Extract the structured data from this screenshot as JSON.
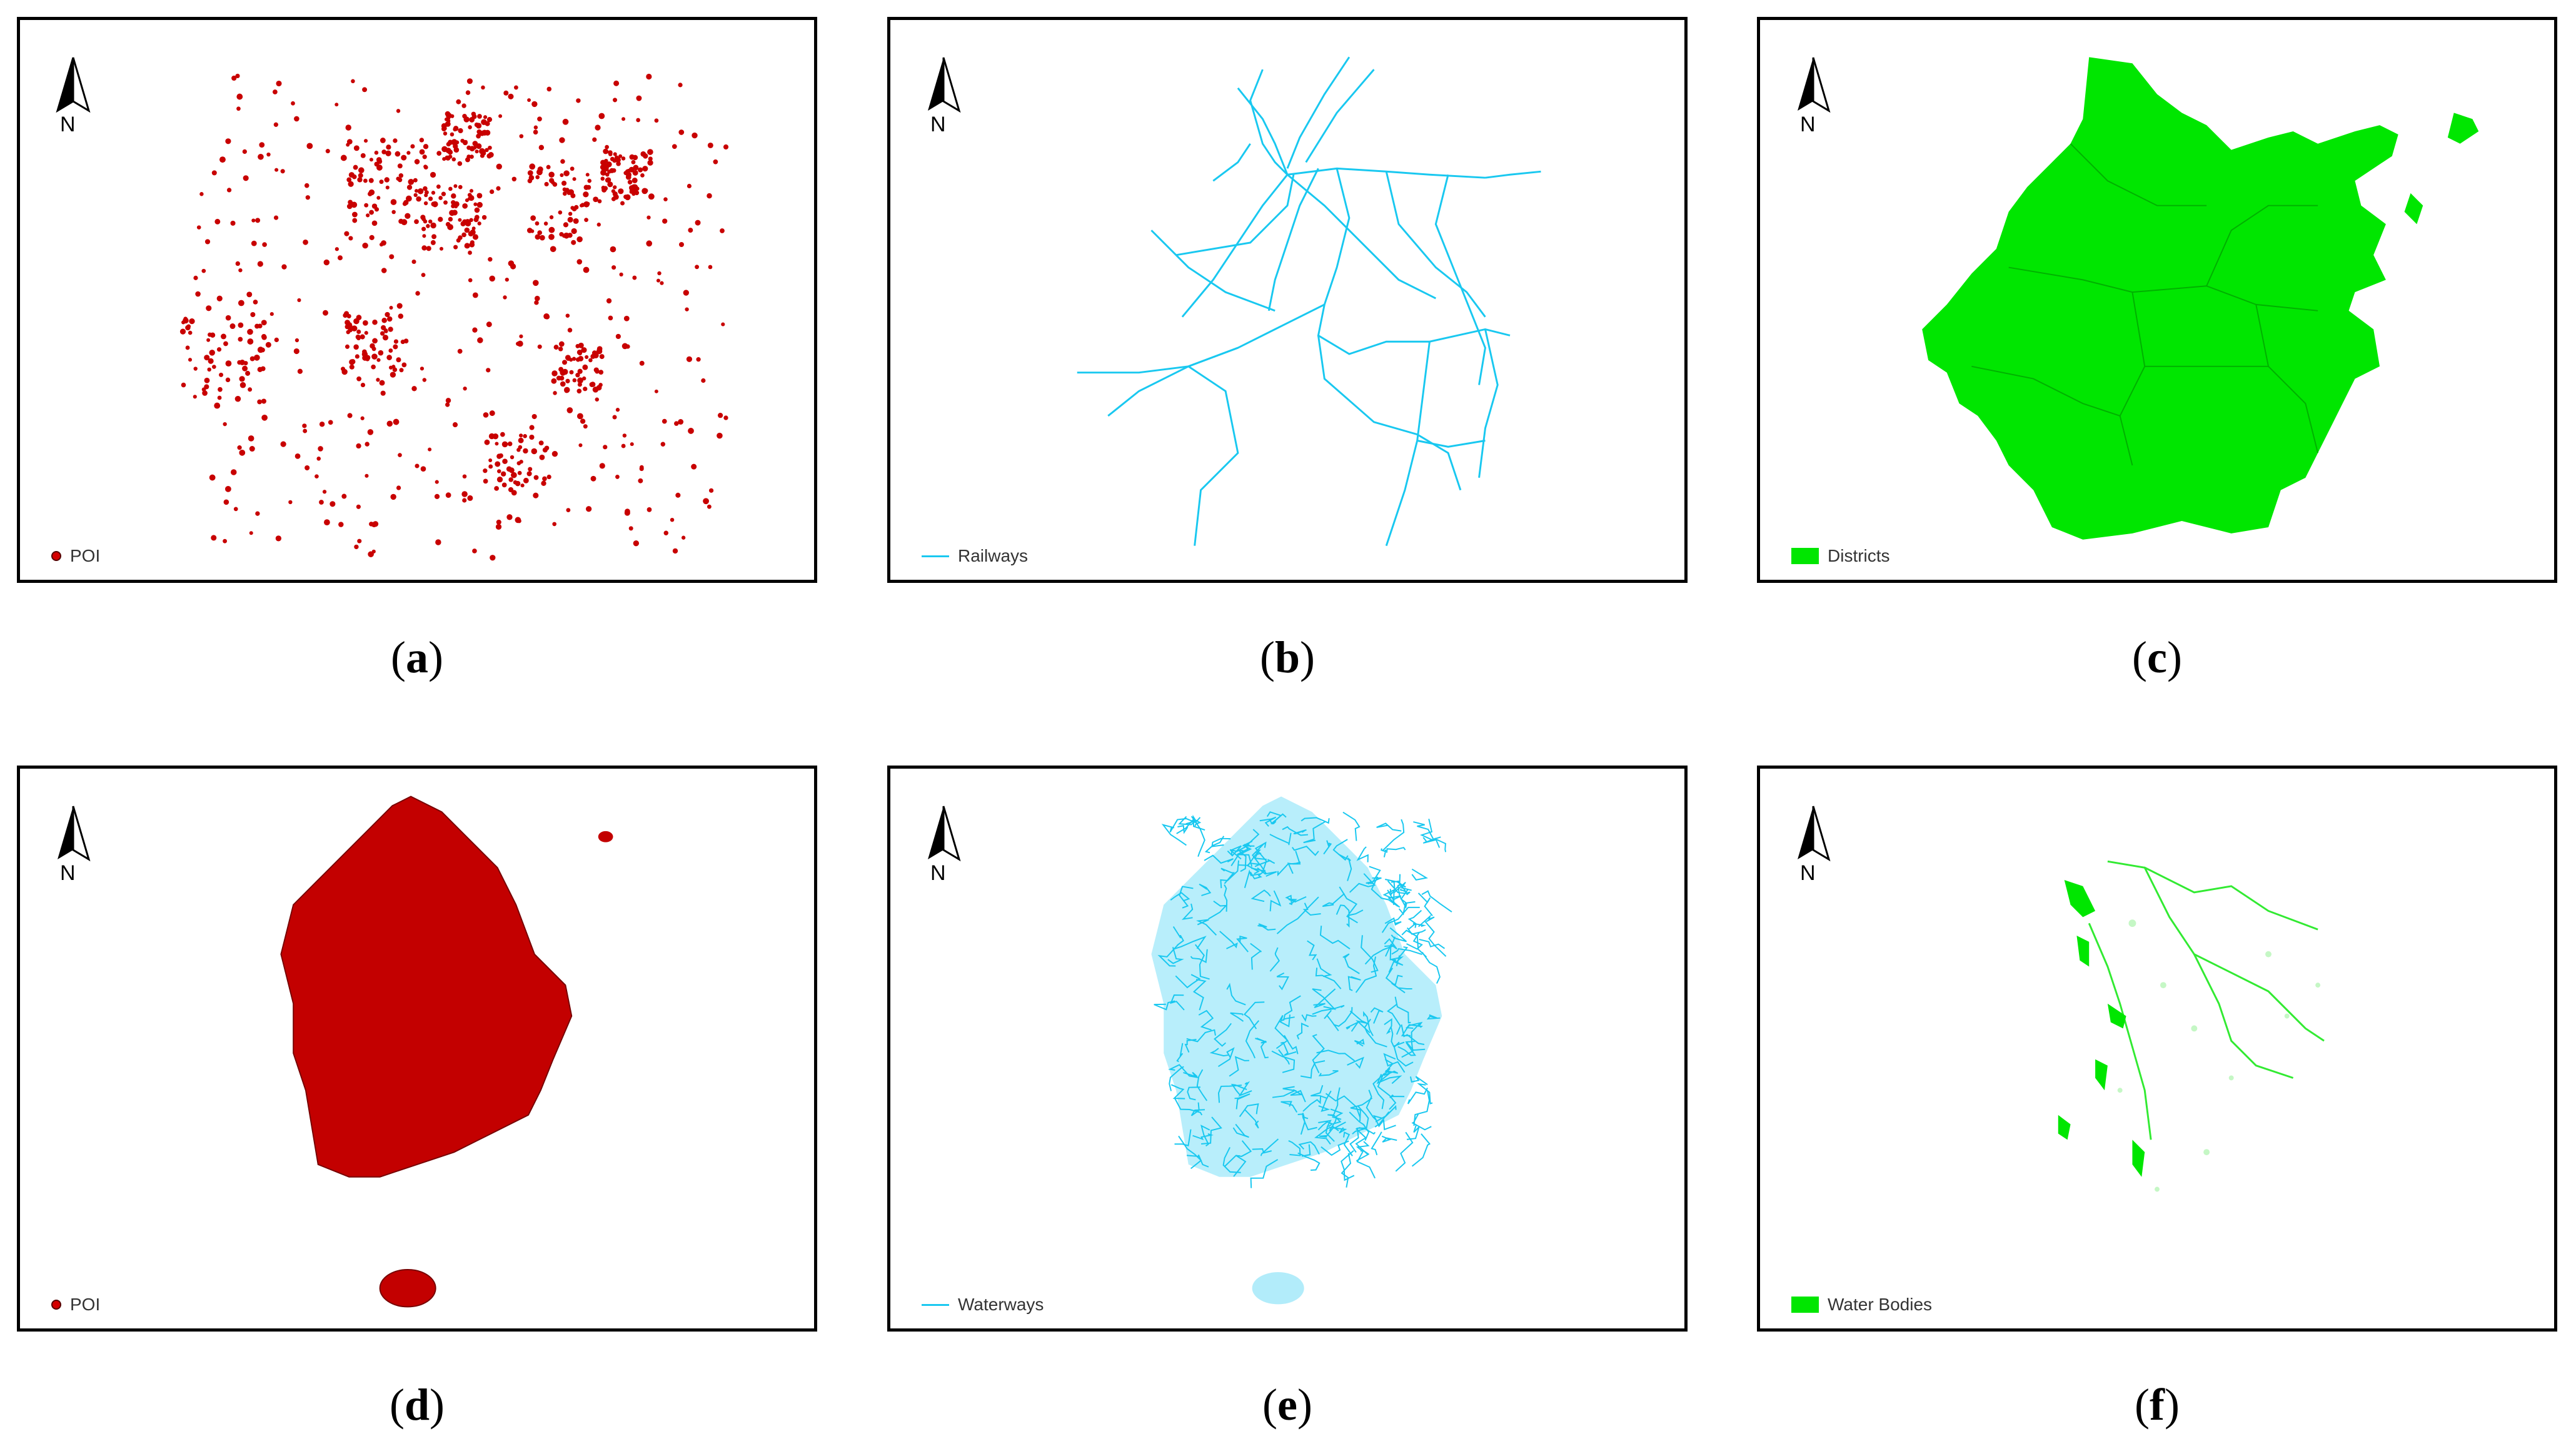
{
  "panels": [
    {
      "id": "a",
      "caption_letter": "a",
      "north_label": "N",
      "legend_label": "POI",
      "legend_type": "point",
      "color": "#d40000"
    },
    {
      "id": "b",
      "caption_letter": "b",
      "north_label": "N",
      "legend_label": "Railways",
      "legend_type": "line",
      "color": "#19c8f0"
    },
    {
      "id": "c",
      "caption_letter": "c",
      "north_label": "N",
      "legend_label": "Districts",
      "legend_type": "fill",
      "color": "#00e600"
    },
    {
      "id": "d",
      "caption_letter": "d",
      "north_label": "N",
      "legend_label": "POI",
      "legend_type": "point",
      "color": "#d40000"
    },
    {
      "id": "e",
      "caption_letter": "e",
      "north_label": "N",
      "legend_label": "Waterways",
      "legend_type": "line",
      "color": "#19c8f0"
    },
    {
      "id": "f",
      "caption_letter": "f",
      "north_label": "N",
      "legend_label": "Water Bodies",
      "legend_type": "fill",
      "color": "#00e600"
    }
  ]
}
